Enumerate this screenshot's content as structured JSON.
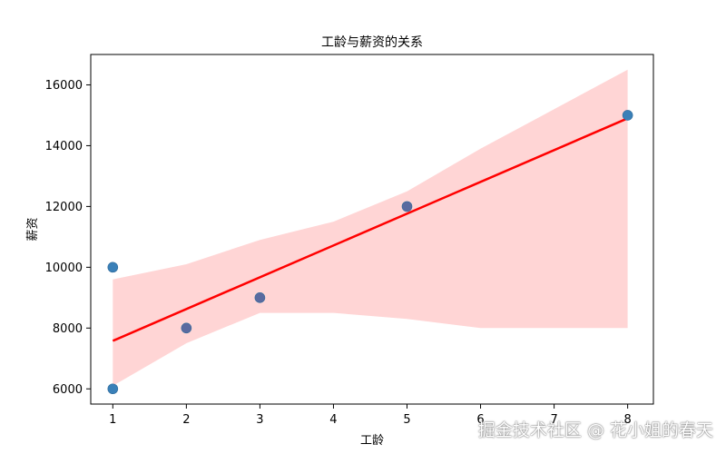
{
  "chart_data": {
    "type": "scatter",
    "title": "工龄与薪资的关系",
    "xlabel": "工龄",
    "ylabel": "薪资",
    "xlim": [
      0.7,
      8.35
    ],
    "ylim": [
      5500,
      17000
    ],
    "xticks": [
      1,
      2,
      3,
      4,
      5,
      6,
      7,
      8
    ],
    "yticks": [
      6000,
      8000,
      10000,
      12000,
      14000,
      16000
    ],
    "grid": false,
    "points": [
      {
        "x": 1,
        "y": 10000
      },
      {
        "x": 1,
        "y": 6000
      },
      {
        "x": 2,
        "y": 8000
      },
      {
        "x": 3,
        "y": 9000
      },
      {
        "x": 5,
        "y": 12000
      },
      {
        "x": 8,
        "y": 15000
      }
    ],
    "regression_line": {
      "x": [
        1,
        8
      ],
      "y": [
        7580,
        14900
      ]
    },
    "confidence_band": {
      "x": [
        1,
        1.5,
        2,
        2.5,
        3,
        4,
        5,
        6,
        7,
        8
      ],
      "lower": [
        6100,
        6800,
        7500,
        8000,
        8500,
        8500,
        8300,
        8000,
        8000,
        8000
      ],
      "upper": [
        9600,
        9850,
        10100,
        10500,
        10900,
        11500,
        12500,
        13900,
        15200,
        16500
      ]
    },
    "colors": {
      "points": "#3a80b8",
      "points_overlap": "#5a6aa0",
      "line": "#ff0000",
      "band": "#ffd5d5"
    }
  },
  "watermark": "掘金技术社区 @ 花小姐的春天"
}
